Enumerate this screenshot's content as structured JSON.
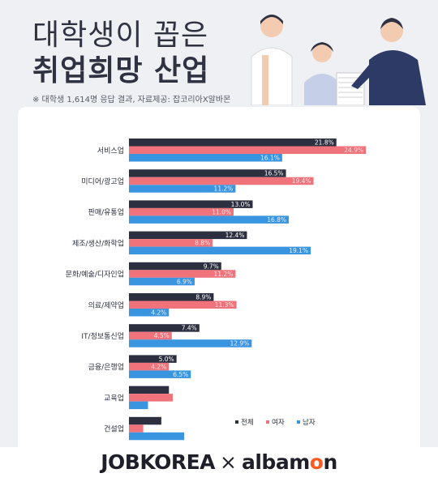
{
  "header": {
    "title_line1": "대학생이 꼽은",
    "title_line2": "취업희망 산업",
    "source": "※ 대학생 1,614명 응답 결과,  자료제공: 잡코리아X알바몬"
  },
  "footer": {
    "logo_left": "JOBKOREA",
    "logo_sep": "×",
    "logo_right_a": "alba",
    "logo_right_o": "m",
    "logo_right_b": "on"
  },
  "colors": {
    "all": "#2c2f3f",
    "female": "#f0727a",
    "male": "#3a95e0",
    "logo_accent": "#ff5a1f"
  },
  "chart_data": {
    "type": "bar",
    "orientation": "horizontal",
    "categories": [
      "서비스업",
      "미디어/광고업",
      "판매/유통업",
      "제조/생산/화학업",
      "문화/예술/디자인업",
      "의료/제약업",
      "IT/정보통신업",
      "금융/은행업",
      "교육업",
      "건설업"
    ],
    "series": [
      {
        "name": "전체",
        "values": [
          21.8,
          16.5,
          13.0,
          12.4,
          9.7,
          8.9,
          7.4,
          5.0,
          4.2,
          3.4
        ],
        "labels": [
          "21.8%",
          "16.5%",
          "13.0%",
          "12.4%",
          "9.7%",
          "8.9%",
          "7.4%",
          "5.0%",
          "",
          ""
        ]
      },
      {
        "name": "여자",
        "values": [
          24.9,
          19.4,
          11.0,
          8.8,
          11.2,
          11.3,
          4.5,
          4.2,
          4.6,
          1.5
        ],
        "labels": [
          "24.9%",
          "19.4%",
          "11.0%",
          "8.8%",
          "11.2%",
          "11.3%",
          "4.5%",
          "4.2%",
          "",
          ""
        ]
      },
      {
        "name": "남자",
        "values": [
          16.1,
          11.2,
          16.8,
          19.1,
          6.9,
          4.2,
          12.9,
          6.5,
          2.0,
          5.8
        ],
        "labels": [
          "16.1%",
          "11.2%",
          "16.8%",
          "19.1%",
          "6.9%",
          "4.2%",
          "12.9%",
          "6.5%",
          "",
          ""
        ]
      }
    ],
    "xlim": [
      0,
      26
    ],
    "legend": "bottom-right",
    "grid": false
  }
}
